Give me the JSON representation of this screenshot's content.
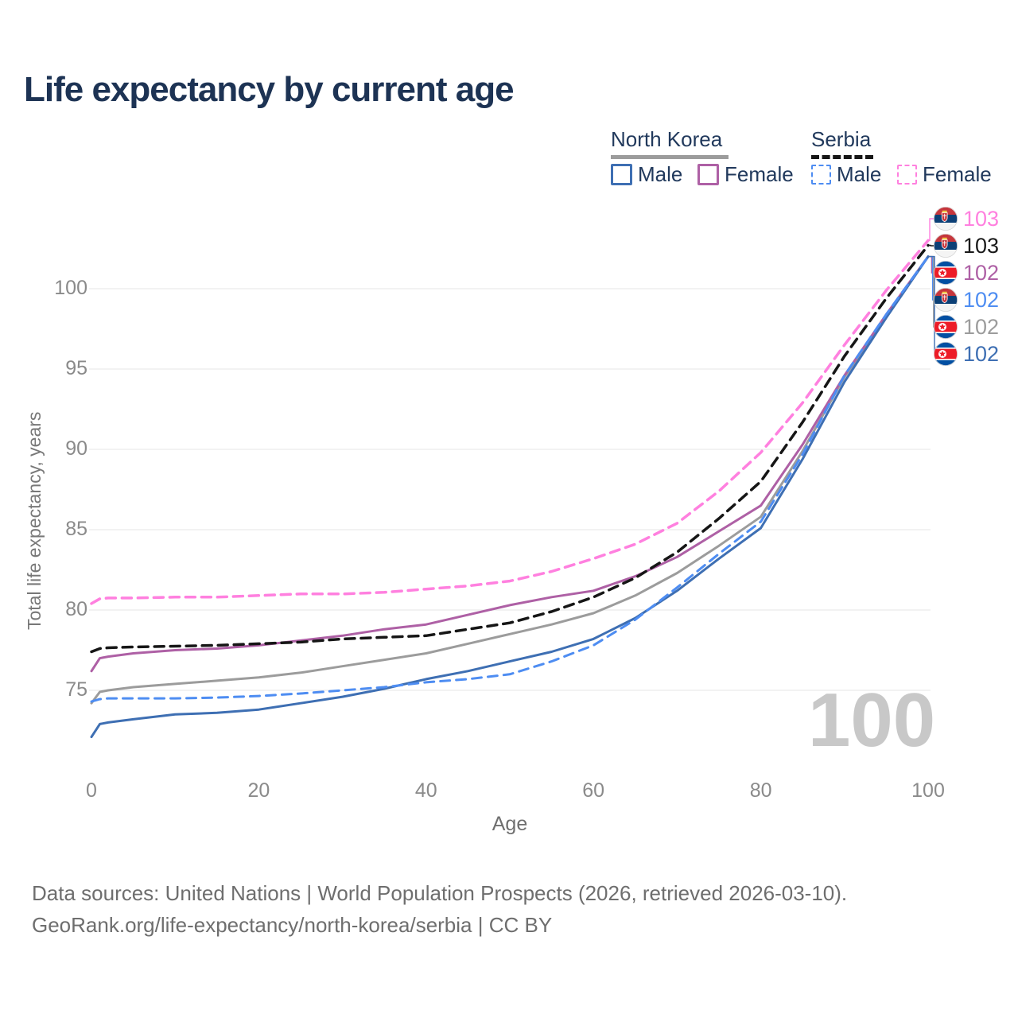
{
  "title": "Life expectancy by current age",
  "legend": {
    "groups": [
      {
        "title": "North Korea",
        "line_style": "solid",
        "underline_color": "#9c9c9c",
        "items": [
          {
            "label": "Male",
            "color": "#3e6fb3"
          },
          {
            "label": "Female",
            "color": "#ae60a5"
          }
        ]
      },
      {
        "title": "Serbia",
        "line_style": "dashed",
        "underline_color": "#161616",
        "items": [
          {
            "label": "Male",
            "color": "#4e8df2"
          },
          {
            "label": "Female",
            "color": "#ff80df"
          }
        ]
      }
    ]
  },
  "axes": {
    "y_title": "Total life expectancy, years",
    "x_title": "Age",
    "y_ticks": [
      75,
      80,
      85,
      90,
      95,
      100
    ],
    "x_ticks": [
      0,
      20,
      40,
      60,
      80,
      100
    ]
  },
  "watermark": "100",
  "endpoint_labels": [
    {
      "value": "103",
      "flag": "serbia-flag-icon",
      "series": "Serbia Female",
      "color": "#ff80df"
    },
    {
      "value": "103",
      "flag": "serbia-flag-icon",
      "series": "Serbia Total",
      "color": "#1a1a1a"
    },
    {
      "value": "102",
      "flag": "north-korea-flag-icon",
      "series": "North Korea Female",
      "color": "#ae60a5"
    },
    {
      "value": "102",
      "flag": "serbia-flag-icon",
      "series": "Serbia Male",
      "color": "#4e8df2"
    },
    {
      "value": "102",
      "flag": "north-korea-flag-icon",
      "series": "North Korea Total",
      "color": "#9c9c9c"
    },
    {
      "value": "102",
      "flag": "north-korea-flag-icon",
      "series": "North Korea Male",
      "color": "#3e6fb3"
    }
  ],
  "footer": {
    "line1": "Data sources: United Nations | World Population Prospects (2026, retrieved 2026-03-10).",
    "line2": "GeoRank.org/life-expectancy/north-korea/serbia | CC BY"
  },
  "chart_data": {
    "type": "line",
    "title": "Life expectancy by current age",
    "xlabel": "Age",
    "ylabel": "Total life expectancy, years",
    "xlim": [
      0,
      100
    ],
    "ylim_gridlines": [
      75,
      100
    ],
    "grid": "horizontal",
    "legend_position": "top-right",
    "x": [
      0,
      1,
      2,
      5,
      10,
      15,
      20,
      25,
      30,
      35,
      40,
      45,
      50,
      55,
      60,
      65,
      70,
      75,
      80,
      85,
      90,
      95,
      100
    ],
    "series": [
      {
        "name": "North Korea Total",
        "country": "North Korea",
        "sex": "Total",
        "color": "#9c9c9c",
        "dash": false,
        "width": 3,
        "values": [
          74.2,
          74.9,
          75.0,
          75.2,
          75.4,
          75.6,
          75.8,
          76.1,
          76.5,
          76.9,
          77.3,
          77.9,
          78.5,
          79.1,
          79.8,
          80.9,
          82.3,
          84.0,
          85.8,
          89.9,
          94.5,
          98.3,
          102.0
        ]
      },
      {
        "name": "North Korea Female",
        "country": "North Korea",
        "sex": "Female",
        "color": "#ae60a5",
        "dash": false,
        "width": 3,
        "values": [
          76.2,
          77.0,
          77.1,
          77.3,
          77.5,
          77.6,
          77.8,
          78.1,
          78.4,
          78.8,
          79.1,
          79.7,
          80.3,
          80.8,
          81.2,
          82.1,
          83.3,
          84.9,
          86.5,
          90.3,
          94.6,
          98.4,
          102.0
        ]
      },
      {
        "name": "North Korea Male",
        "country": "North Korea",
        "sex": "Male",
        "color": "#3e6fb3",
        "dash": false,
        "width": 3,
        "values": [
          72.1,
          72.9,
          73.0,
          73.2,
          73.5,
          73.6,
          73.8,
          74.2,
          74.6,
          75.1,
          75.7,
          76.2,
          76.8,
          77.4,
          78.2,
          79.5,
          81.2,
          83.2,
          85.1,
          89.4,
          94.2,
          98.2,
          102.0
        ]
      },
      {
        "name": "Serbia Male",
        "country": "Serbia",
        "sex": "Male",
        "color": "#4e8df2",
        "dash": true,
        "width": 3,
        "values": [
          74.3,
          74.45,
          74.5,
          74.5,
          74.5,
          74.55,
          74.65,
          74.8,
          75.0,
          75.2,
          75.5,
          75.7,
          76.0,
          76.8,
          77.8,
          79.4,
          81.4,
          83.5,
          85.5,
          89.7,
          94.6,
          98.4,
          102.0
        ]
      },
      {
        "name": "Serbia Female",
        "country": "Serbia",
        "sex": "Female",
        "color": "#ff80df",
        "dash": true,
        "width": 3.5,
        "values": [
          80.4,
          80.7,
          80.75,
          80.75,
          80.8,
          80.8,
          80.9,
          81.0,
          81.0,
          81.1,
          81.3,
          81.5,
          81.8,
          82.4,
          83.2,
          84.1,
          85.4,
          87.4,
          89.8,
          92.9,
          96.5,
          99.9,
          103.0
        ]
      },
      {
        "name": "Serbia Total",
        "country": "Serbia",
        "sex": "Total",
        "color": "#161616",
        "dash": true,
        "width": 3.5,
        "values": [
          77.4,
          77.6,
          77.65,
          77.7,
          77.75,
          77.8,
          77.9,
          78.0,
          78.2,
          78.3,
          78.4,
          78.8,
          79.2,
          79.9,
          80.8,
          82.0,
          83.6,
          85.7,
          88.0,
          91.7,
          95.8,
          99.4,
          102.7
        ]
      }
    ]
  }
}
